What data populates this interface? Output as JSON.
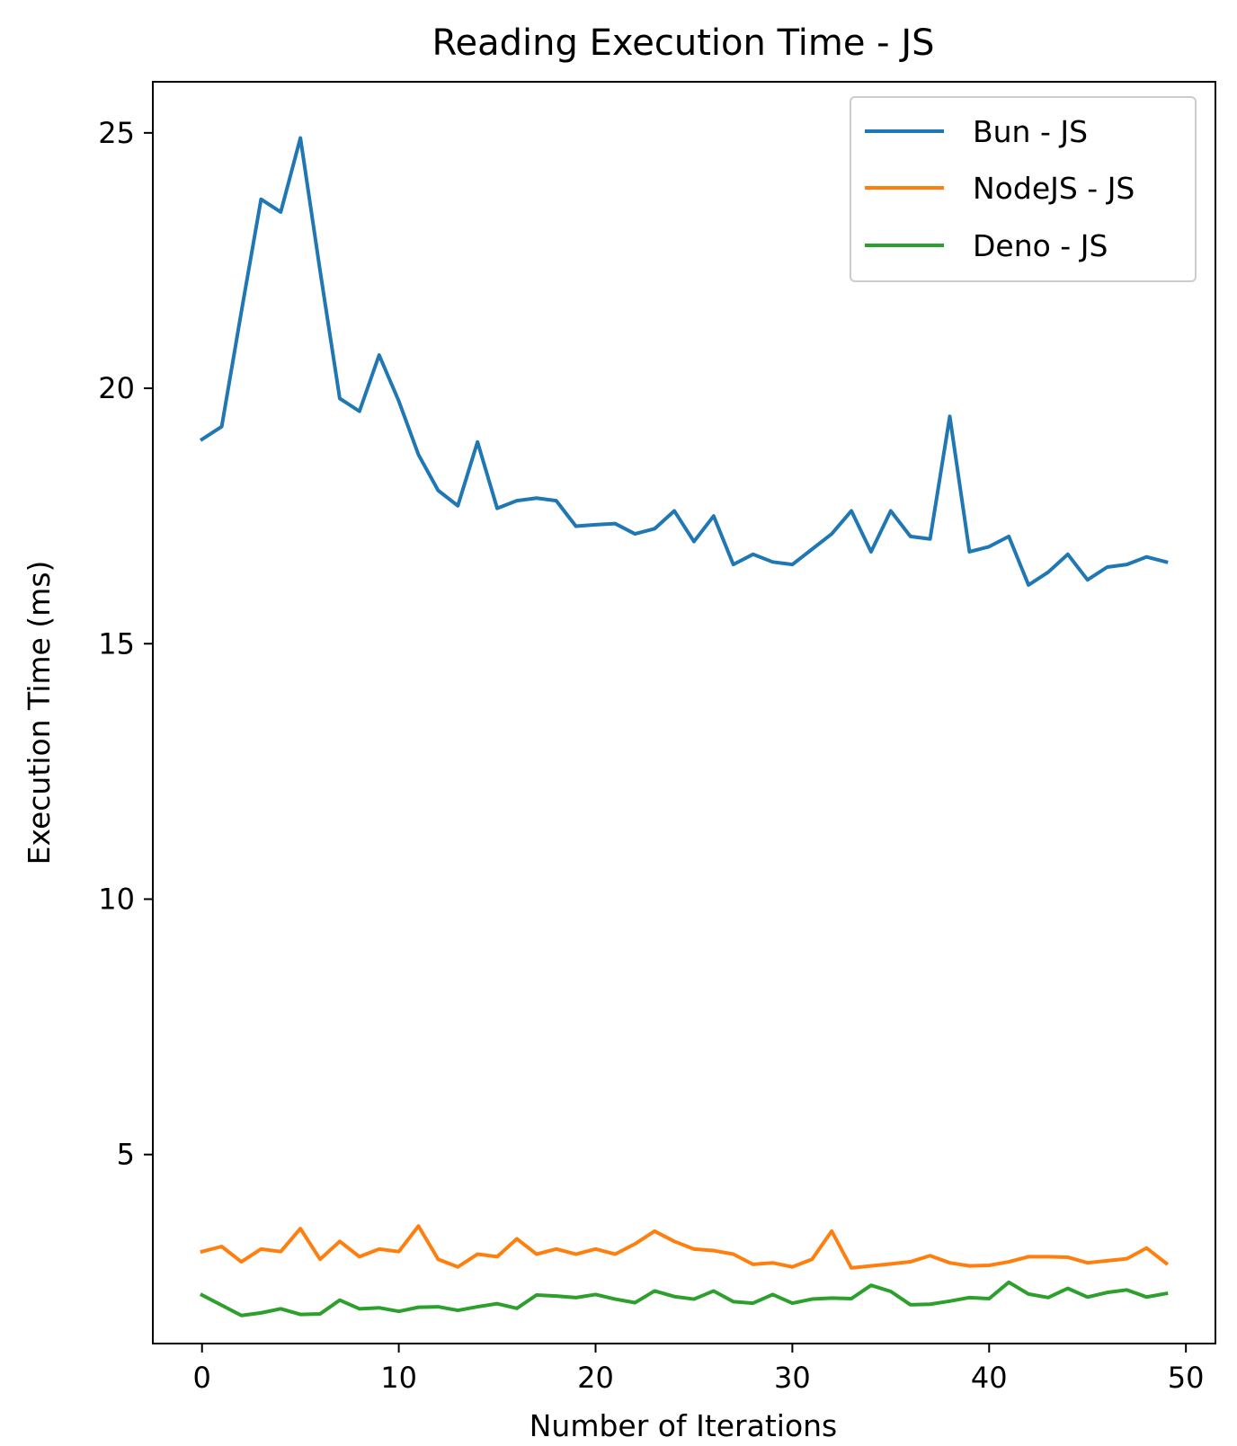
{
  "chart_data": {
    "type": "line",
    "title": "Reading Execution Time - JS",
    "xlabel": "Number of Iterations",
    "ylabel": "Execution Time (ms)",
    "xlim": [
      -2.5,
      51.5
    ],
    "ylim": [
      1.3,
      26.0
    ],
    "xticks": [
      0,
      10,
      20,
      30,
      40,
      50
    ],
    "yticks": [
      5,
      10,
      15,
      20,
      25
    ],
    "grid": false,
    "legend_position": "top-right",
    "x": [
      0,
      1,
      2,
      3,
      4,
      5,
      6,
      7,
      8,
      9,
      10,
      11,
      12,
      13,
      14,
      15,
      16,
      17,
      18,
      19,
      20,
      21,
      22,
      23,
      24,
      25,
      26,
      27,
      28,
      29,
      30,
      31,
      32,
      33,
      34,
      35,
      36,
      37,
      38,
      39,
      40,
      41,
      42,
      43,
      44,
      45,
      46,
      47,
      48,
      49
    ],
    "series": [
      {
        "name": "Bun - JS",
        "color": "#1f77b4",
        "values": [
          19.0,
          19.25,
          21.5,
          23.7,
          23.45,
          24.9,
          22.3,
          19.8,
          19.55,
          20.65,
          19.75,
          18.7,
          18.0,
          17.7,
          18.95,
          17.65,
          17.8,
          17.85,
          17.8,
          17.3,
          17.33,
          17.35,
          17.15,
          17.25,
          17.6,
          17.0,
          17.5,
          16.55,
          16.75,
          16.6,
          16.55,
          16.85,
          17.15,
          17.6,
          16.8,
          17.6,
          17.1,
          17.05,
          19.45,
          16.8,
          16.9,
          17.1,
          16.15,
          16.4,
          16.75,
          16.25,
          16.5,
          16.55,
          16.7,
          16.6
        ]
      },
      {
        "name": "NodeJS - JS",
        "color": "#ff7f0e",
        "values": [
          3.1,
          3.2,
          2.9,
          3.15,
          3.1,
          3.55,
          2.95,
          3.3,
          3.0,
          3.15,
          3.1,
          3.6,
          2.95,
          2.8,
          3.05,
          3.0,
          3.35,
          3.05,
          3.15,
          3.05,
          3.15,
          3.05,
          3.25,
          3.5,
          3.3,
          3.15,
          3.12,
          3.05,
          2.85,
          2.88,
          2.8,
          2.95,
          3.5,
          2.78,
          2.82,
          2.86,
          2.9,
          3.02,
          2.88,
          2.82,
          2.83,
          2.9,
          3.0,
          3.0,
          2.99,
          2.88,
          2.92,
          2.96,
          3.17,
          2.87
        ]
      },
      {
        "name": "Deno - JS",
        "color": "#2ca02c",
        "values": [
          2.25,
          2.05,
          1.85,
          1.9,
          1.98,
          1.87,
          1.88,
          2.15,
          1.98,
          2.0,
          1.93,
          2.01,
          2.02,
          1.95,
          2.02,
          2.08,
          1.99,
          2.25,
          2.23,
          2.2,
          2.26,
          2.17,
          2.1,
          2.33,
          2.22,
          2.17,
          2.33,
          2.12,
          2.09,
          2.26,
          2.09,
          2.17,
          2.19,
          2.18,
          2.44,
          2.32,
          2.06,
          2.07,
          2.13,
          2.2,
          2.18,
          2.5,
          2.27,
          2.2,
          2.38,
          2.21,
          2.3,
          2.35,
          2.21,
          2.28
        ]
      }
    ]
  }
}
